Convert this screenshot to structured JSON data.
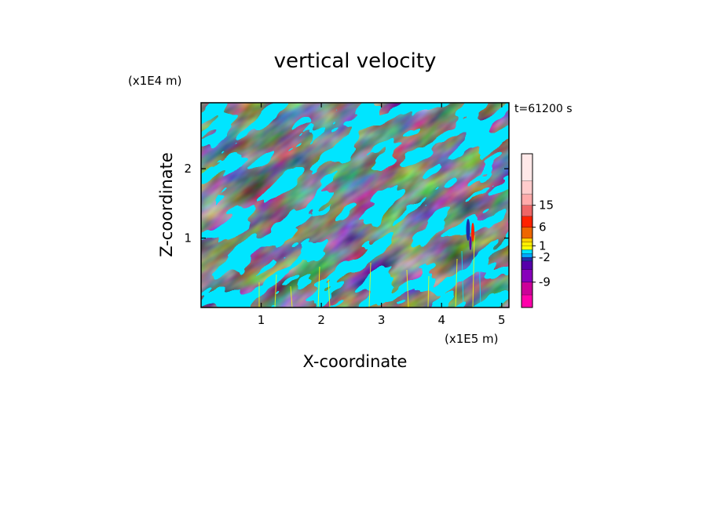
{
  "chart_data": {
    "type": "heatmap",
    "title": "vertical velocity",
    "xlabel": "X-coordinate",
    "ylabel": "Z-coordinate",
    "x_multiplier_label": "(x1E5 m)",
    "y_multiplier_label": "(x1E4 m)",
    "time_label": "t=61200 s",
    "xlim": [
      0,
      5.12
    ],
    "ylim": [
      0,
      2.95
    ],
    "x_ticks": [
      "1",
      "2",
      "3",
      "4",
      "5"
    ],
    "y_ticks": [
      "1",
      "2"
    ],
    "x_tick_values": [
      1,
      2,
      3,
      4,
      5
    ],
    "y_tick_values": [
      1,
      2
    ],
    "colorbar": {
      "tick_labels": [
        "15",
        "6",
        "1",
        "-2",
        "-9"
      ],
      "tick_values": [
        15,
        6,
        1,
        -2,
        -9
      ],
      "levels": [
        {
          "color": "#ff00aa"
        },
        {
          "color": "#cc0099"
        },
        {
          "color": "#8800bb"
        },
        {
          "color": "#5500aa"
        },
        {
          "color": "#2233aa"
        },
        {
          "color": "#00aaff"
        },
        {
          "color": "#00e5ff"
        },
        {
          "color": "#ffff00"
        },
        {
          "color": "#ffee00"
        },
        {
          "color": "#ffd000"
        },
        {
          "color": "#ee6600"
        },
        {
          "color": "#ff2200"
        },
        {
          "color": "#ee6666"
        },
        {
          "color": "#ffaaaa"
        },
        {
          "color": "#ffcccc"
        },
        {
          "color": "#ffe8e8"
        }
      ]
    },
    "field_colors": {
      "positive": "#ffff00",
      "negative": "#00e5ff",
      "strong_negative": "#1a2eaa",
      "strong_positive": "#ff2200"
    },
    "strong_feature": {
      "x": 4.5,
      "z_min": 0.9,
      "z_max": 1.3,
      "note": "intense up/down cell near x=4.5"
    }
  }
}
